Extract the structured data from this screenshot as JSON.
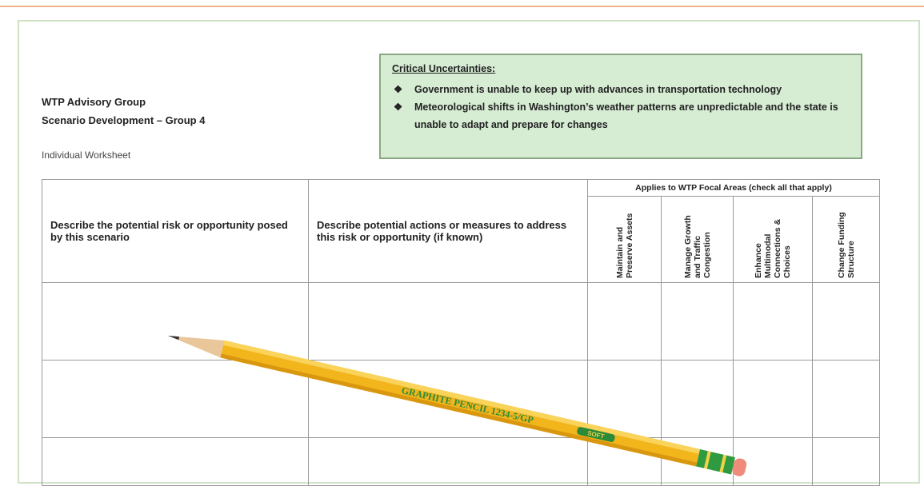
{
  "header": {
    "title": "WTP Advisory Group",
    "subtitle": "Scenario Development – Group 4",
    "note": "Individual Worksheet"
  },
  "uncertainties": {
    "title": "Critical Uncertainties:",
    "items": [
      "Government is unable to keep up with advances in transportation technology",
      "Meteorological shifts in Washington’s weather patterns are unpredictable and the state is unable to adapt and prepare for changes"
    ]
  },
  "table": {
    "columns": [
      "Describe the potential risk or opportunity posed by this scenario",
      "Describe potential actions or measures to address this risk or opportunity (if known)"
    ],
    "group_header": "Applies to WTP Focal Areas (check all that apply)",
    "focal_areas": [
      "Maintain and Preserve Assets",
      "Manage Growth and Traffic Congestion",
      "Enhance Multimodal Connections & Choices",
      "Change Funding Structure"
    ]
  },
  "pencil": {
    "brand": "GRAPHITE PENCIL 1234-5/GP",
    "grade": "SOFT"
  }
}
